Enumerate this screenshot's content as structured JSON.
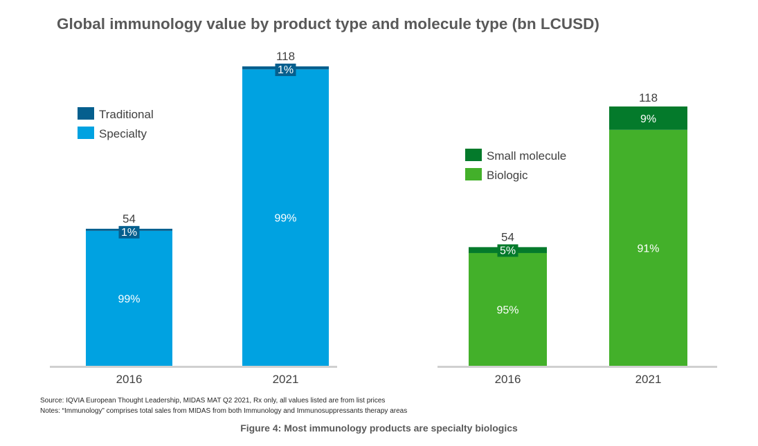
{
  "title": "Global immunology value by product type and molecule type (bn LCUSD)",
  "chart_data": [
    {
      "type": "bar",
      "stacked": true,
      "categories": [
        "2016",
        "2021"
      ],
      "totals": [
        54,
        118
      ],
      "series": [
        {
          "name": "Specialty",
          "color": "#00A2E1",
          "percent": [
            99,
            99
          ]
        },
        {
          "name": "Traditional",
          "color": "#055F8E",
          "percent": [
            1,
            1
          ]
        }
      ],
      "legend": [
        "Traditional",
        "Specialty"
      ]
    },
    {
      "type": "bar",
      "stacked": true,
      "categories": [
        "2016",
        "2021"
      ],
      "totals": [
        54,
        118
      ],
      "series": [
        {
          "name": "Biologic",
          "color": "#43B02A",
          "percent": [
            95,
            91
          ]
        },
        {
          "name": "Small molecule",
          "color": "#047A2B",
          "percent": [
            5,
            9
          ]
        }
      ],
      "legend": [
        "Small molecule",
        "Biologic"
      ]
    }
  ],
  "notes": {
    "source": "Source: IQVIA European Thought Leadership, MIDAS MAT Q2 2021, Rx only, all values listed  are from list  prices",
    "notes": "Notes: “Immunology”  comprises  total sales from MIDAS from both Immunology  and Immunosuppressants  therapy areas"
  },
  "caption": "Figure 4: Most immunology products are specialty biologics"
}
